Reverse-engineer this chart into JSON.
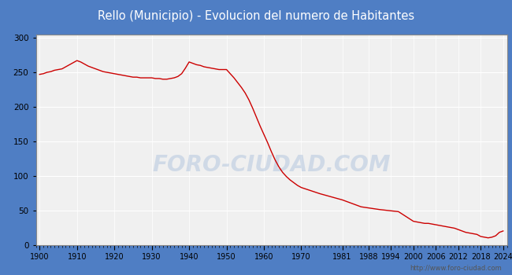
{
  "title": "Rello (Municipio) - Evolucion del numero de Habitantes",
  "title_color": "#ffffff",
  "title_bg_color": "#4f7ec4",
  "plot_bg_color": "#f0f0f0",
  "line_color": "#cc0000",
  "watermark": "FORO-CIUDAD.COM",
  "url": "http://www.foro-ciudad.com",
  "years": [
    1900,
    1901,
    1902,
    1903,
    1904,
    1905,
    1906,
    1907,
    1908,
    1909,
    1910,
    1911,
    1912,
    1913,
    1914,
    1915,
    1916,
    1917,
    1918,
    1919,
    1920,
    1921,
    1922,
    1923,
    1924,
    1925,
    1926,
    1927,
    1928,
    1929,
    1930,
    1931,
    1932,
    1933,
    1934,
    1935,
    1936,
    1937,
    1938,
    1939,
    1940,
    1941,
    1942,
    1943,
    1944,
    1945,
    1946,
    1947,
    1948,
    1949,
    1950,
    1951,
    1952,
    1953,
    1954,
    1955,
    1956,
    1957,
    1958,
    1959,
    1960,
    1961,
    1962,
    1963,
    1964,
    1965,
    1966,
    1967,
    1968,
    1969,
    1970,
    1975,
    1981,
    1986,
    1991,
    1996,
    2000,
    2001,
    2002,
    2003,
    2004,
    2005,
    2006,
    2007,
    2008,
    2009,
    2010,
    2011,
    2012,
    2013,
    2014,
    2015,
    2016,
    2017,
    2018,
    2019,
    2020,
    2021,
    2022,
    2023,
    2024
  ],
  "population": [
    247,
    248,
    250,
    251,
    253,
    254,
    255,
    258,
    261,
    264,
    267,
    265,
    262,
    259,
    257,
    255,
    253,
    251,
    250,
    249,
    248,
    247,
    246,
    245,
    244,
    243,
    243,
    242,
    242,
    242,
    242,
    241,
    241,
    240,
    240,
    241,
    242,
    244,
    248,
    256,
    265,
    263,
    261,
    260,
    258,
    257,
    256,
    255,
    254,
    254,
    254,
    248,
    242,
    235,
    228,
    220,
    210,
    198,
    185,
    172,
    160,
    148,
    135,
    123,
    113,
    105,
    99,
    94,
    90,
    86,
    83,
    74,
    65,
    55,
    51,
    48,
    34,
    33,
    32,
    31,
    31,
    30,
    29,
    28,
    27,
    26,
    25,
    24,
    22,
    20,
    18,
    17,
    16,
    15,
    12,
    11,
    10,
    11,
    13,
    18,
    20
  ],
  "xtick_labels": [
    "1900",
    "1910",
    "1920",
    "1930",
    "1940",
    "1950",
    "1960",
    "1970",
    "1981",
    "1988",
    "1994",
    "2000",
    "2006",
    "2012",
    "2018",
    "2024"
  ],
  "xtick_positions": [
    1900,
    1910,
    1920,
    1930,
    1940,
    1950,
    1960,
    1970,
    1981,
    1988,
    1994,
    2000,
    2006,
    2012,
    2018,
    2024
  ],
  "ytick_labels": [
    "0",
    "50",
    "100",
    "150",
    "200",
    "250",
    "300"
  ],
  "ytick_values": [
    0,
    50,
    100,
    150,
    200,
    250,
    300
  ],
  "ylim": [
    0,
    305
  ],
  "xlim": [
    1899,
    2025
  ]
}
